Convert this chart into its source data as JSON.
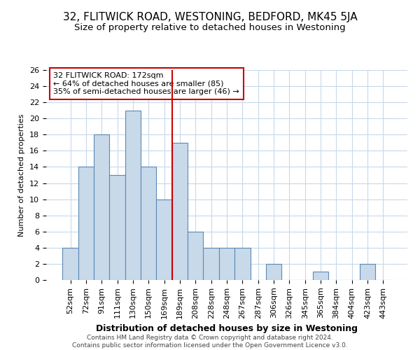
{
  "title": "32, FLITWICK ROAD, WESTONING, BEDFORD, MK45 5JA",
  "subtitle": "Size of property relative to detached houses in Westoning",
  "xlabel": "Distribution of detached houses by size in Westoning",
  "ylabel": "Number of detached properties",
  "bar_labels": [
    "52sqm",
    "72sqm",
    "91sqm",
    "111sqm",
    "130sqm",
    "150sqm",
    "169sqm",
    "189sqm",
    "208sqm",
    "228sqm",
    "248sqm",
    "267sqm",
    "287sqm",
    "306sqm",
    "326sqm",
    "345sqm",
    "365sqm",
    "384sqm",
    "404sqm",
    "423sqm",
    "443sqm"
  ],
  "bar_values": [
    4,
    14,
    18,
    13,
    21,
    14,
    10,
    17,
    6,
    4,
    4,
    4,
    0,
    2,
    0,
    0,
    1,
    0,
    0,
    2,
    0
  ],
  "bar_color": "#c8d9ea",
  "bar_edge_color": "#5a8ab5",
  "vline_x": 6.5,
  "vline_color": "#cc0000",
  "annotation_text": "32 FLITWICK ROAD: 172sqm\n← 64% of detached houses are smaller (85)\n35% of semi-detached houses are larger (46) →",
  "annotation_box_color": "#ffffff",
  "annotation_box_edge": "#cc0000",
  "ylim": [
    0,
    26
  ],
  "yticks": [
    0,
    2,
    4,
    6,
    8,
    10,
    12,
    14,
    16,
    18,
    20,
    22,
    24,
    26
  ],
  "title_fontsize": 11,
  "subtitle_fontsize": 9.5,
  "xlabel_fontsize": 9,
  "ylabel_fontsize": 8,
  "tick_fontsize": 8,
  "annot_fontsize": 8,
  "footer_text": "Contains HM Land Registry data © Crown copyright and database right 2024.\nContains public sector information licensed under the Open Government Licence v3.0.",
  "background_color": "#ffffff",
  "grid_color": "#c8d9ea"
}
